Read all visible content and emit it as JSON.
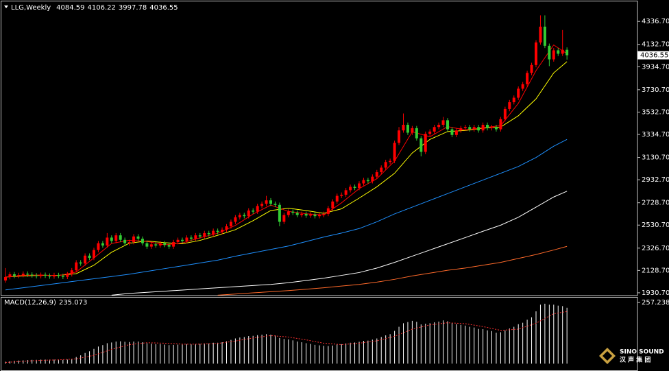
{
  "chart_data": [
    {
      "type": "candlestick",
      "title": "LLG,Weekly",
      "open": [
        2040,
        2070,
        2095,
        2080,
        2088,
        2100,
        2092,
        2085,
        2078,
        2090,
        2082,
        2075,
        2088,
        2080,
        2072,
        2095,
        2130,
        2200,
        2190,
        2260,
        2240,
        2310,
        2370,
        2350,
        2420,
        2390,
        2440,
        2400,
        2370,
        2380,
        2430,
        2410,
        2370,
        2340,
        2360,
        2350,
        2370,
        2355,
        2340,
        2380,
        2400,
        2390,
        2420,
        2410,
        2440,
        2430,
        2460,
        2450,
        2480,
        2470,
        2490,
        2520,
        2560,
        2600,
        2620,
        2610,
        2660,
        2650,
        2700,
        2720,
        2750,
        2720,
        2710,
        2560,
        2620,
        2650,
        2640,
        2620,
        2630,
        2615,
        2625,
        2610,
        2620,
        2630,
        2680,
        2740,
        2790,
        2800,
        2840,
        2870,
        2860,
        2900,
        2930,
        2920,
        2960,
        3000,
        3040,
        3090,
        3100,
        3260,
        3370,
        3420,
        3350,
        3390,
        3300,
        3180,
        3340,
        3360,
        3400,
        3420,
        3460,
        3380,
        3330,
        3370,
        3390,
        3400,
        3380,
        3400,
        3370,
        3420,
        3390,
        3400,
        3380,
        3470,
        3560,
        3620,
        3660,
        3740,
        3780,
        3880,
        3950,
        4150,
        4290,
        4120,
        4000,
        4080,
        4050,
        4084.59
      ],
      "high": [
        2150,
        2115,
        2115,
        2108,
        2120,
        2120,
        2112,
        2105,
        2110,
        2110,
        2102,
        2108,
        2108,
        2100,
        2115,
        2150,
        2220,
        2220,
        2280,
        2280,
        2330,
        2390,
        2390,
        2460,
        2440,
        2460,
        2460,
        2420,
        2400,
        2450,
        2450,
        2430,
        2390,
        2380,
        2380,
        2390,
        2390,
        2375,
        2400,
        2420,
        2420,
        2440,
        2440,
        2460,
        2460,
        2480,
        2480,
        2500,
        2500,
        2510,
        2540,
        2580,
        2620,
        2640,
        2640,
        2680,
        2680,
        2720,
        2740,
        2790,
        2770,
        2740,
        2730,
        2640,
        2670,
        2670,
        2660,
        2650,
        2650,
        2645,
        2645,
        2640,
        2650,
        2700,
        2760,
        2810,
        2820,
        2860,
        2890,
        2890,
        2920,
        2950,
        2950,
        2980,
        3020,
        3060,
        3110,
        3120,
        3280,
        3400,
        3520,
        3440,
        3410,
        3410,
        3320,
        3360,
        3380,
        3420,
        3440,
        3490,
        3480,
        3400,
        3390,
        3410,
        3420,
        3420,
        3420,
        3420,
        3440,
        3440,
        3420,
        3420,
        3490,
        3580,
        3640,
        3680,
        3760,
        3800,
        3900,
        3970,
        4170,
        4390,
        4390,
        4140,
        4100,
        4100,
        4260,
        4106.22
      ],
      "low": [
        2020,
        2050,
        2060,
        2060,
        2068,
        2072,
        2065,
        2058,
        2058,
        2062,
        2055,
        2055,
        2060,
        2052,
        2052,
        2075,
        2110,
        2170,
        2170,
        2220,
        2220,
        2290,
        2330,
        2330,
        2370,
        2370,
        2380,
        2350,
        2350,
        2360,
        2390,
        2350,
        2320,
        2320,
        2330,
        2330,
        2335,
        2320,
        2320,
        2360,
        2370,
        2370,
        2390,
        2390,
        2410,
        2410,
        2430,
        2430,
        2450,
        2450,
        2470,
        2500,
        2540,
        2580,
        2590,
        2590,
        2630,
        2630,
        2680,
        2700,
        2700,
        2690,
        2520,
        2540,
        2600,
        2620,
        2600,
        2600,
        2595,
        2595,
        2590,
        2590,
        2600,
        2610,
        2660,
        2720,
        2770,
        2780,
        2820,
        2840,
        2840,
        2880,
        2900,
        2900,
        2940,
        2980,
        3020,
        3070,
        3080,
        3240,
        3350,
        3330,
        3330,
        3280,
        3140,
        3160,
        3320,
        3340,
        3380,
        3400,
        3360,
        3310,
        3310,
        3350,
        3370,
        3360,
        3360,
        3350,
        3350,
        3370,
        3370,
        3360,
        3360,
        3450,
        3540,
        3600,
        3640,
        3720,
        3760,
        3860,
        3930,
        4130,
        4100,
        3940,
        3980,
        4030,
        4030,
        3997.78
      ],
      "close": [
        2070,
        2095,
        2080,
        2088,
        2100,
        2092,
        2085,
        2078,
        2090,
        2082,
        2075,
        2088,
        2080,
        2072,
        2095,
        2130,
        2200,
        2190,
        2260,
        2240,
        2310,
        2370,
        2350,
        2420,
        2390,
        2440,
        2400,
        2370,
        2380,
        2430,
        2410,
        2370,
        2340,
        2360,
        2350,
        2370,
        2355,
        2340,
        2380,
        2400,
        2390,
        2420,
        2410,
        2440,
        2430,
        2460,
        2450,
        2480,
        2470,
        2490,
        2520,
        2560,
        2600,
        2620,
        2610,
        2660,
        2650,
        2700,
        2720,
        2750,
        2720,
        2710,
        2560,
        2620,
        2650,
        2640,
        2620,
        2630,
        2615,
        2625,
        2610,
        2620,
        2630,
        2680,
        2740,
        2790,
        2800,
        2840,
        2870,
        2860,
        2900,
        2930,
        2920,
        2960,
        3000,
        3040,
        3090,
        3100,
        3260,
        3370,
        3420,
        3350,
        3390,
        3300,
        3180,
        3340,
        3360,
        3400,
        3420,
        3460,
        3380,
        3330,
        3370,
        3390,
        3400,
        3380,
        3400,
        3370,
        3420,
        3390,
        3400,
        3380,
        3470,
        3560,
        3620,
        3660,
        3740,
        3780,
        3880,
        3950,
        4150,
        4290,
        4120,
        4000,
        4080,
        4050,
        4084,
        4036.55
      ],
      "up_color": "#ff0000",
      "down_color": "#33cc33",
      "ylim": [
        1906,
        4508
      ],
      "yticks": [
        {
          "value": 1930.7,
          "label": "1930.70"
        },
        {
          "value": 2128.7,
          "label": "2128.70"
        },
        {
          "value": 2326.7,
          "label": "2326.70"
        },
        {
          "value": 2530.7,
          "label": "2530.70"
        },
        {
          "value": 2728.7,
          "label": "2728.70"
        },
        {
          "value": 2932.7,
          "label": "2932.70"
        },
        {
          "value": 3130.7,
          "label": "3130.70"
        },
        {
          "value": 3334.7,
          "label": "3334.70"
        },
        {
          "value": 3532.7,
          "label": "3532.70"
        },
        {
          "value": 3730.7,
          "label": "3730.70"
        },
        {
          "value": 3934.7,
          "label": "3934.70"
        },
        {
          "value": 4132.7,
          "label": "4132.70"
        },
        {
          "value": 4336.7,
          "label": "4336.70"
        }
      ],
      "grid": false,
      "overlays": [
        {
          "color": "#1e90ff",
          "x": [
            0,
            4,
            8,
            12,
            16,
            20,
            24,
            28,
            32,
            36,
            40,
            44,
            48,
            52,
            56,
            60,
            64,
            68,
            72,
            76,
            80,
            84,
            88,
            92,
            96,
            100,
            104,
            108,
            112,
            116,
            120,
            124,
            127
          ],
          "values": [
            1956,
            1975,
            1995,
            2015,
            2035,
            2055,
            2075,
            2095,
            2120,
            2145,
            2170,
            2195,
            2220,
            2255,
            2285,
            2315,
            2345,
            2385,
            2425,
            2460,
            2500,
            2560,
            2630,
            2690,
            2750,
            2810,
            2870,
            2930,
            2990,
            3050,
            3130,
            3230,
            3290
          ]
        },
        {
          "color": "#ffffff",
          "x": [
            24,
            28,
            32,
            36,
            40,
            44,
            48,
            52,
            56,
            60,
            64,
            68,
            72,
            76,
            80,
            84,
            88,
            92,
            96,
            100,
            104,
            108,
            112,
            116,
            120,
            124,
            127
          ],
          "values": [
            1910,
            1925,
            1935,
            1945,
            1955,
            1965,
            1975,
            1985,
            1995,
            2005,
            2020,
            2040,
            2060,
            2085,
            2110,
            2150,
            2200,
            2255,
            2310,
            2365,
            2420,
            2476,
            2530,
            2600,
            2690,
            2780,
            2831
          ]
        },
        {
          "color": "#ff6a2a",
          "x": [
            48,
            52,
            56,
            60,
            64,
            68,
            72,
            76,
            80,
            84,
            88,
            92,
            96,
            100,
            104,
            108,
            112,
            116,
            120,
            124,
            127
          ],
          "values": [
            1910,
            1920,
            1930,
            1940,
            1950,
            1962,
            1975,
            1990,
            2005,
            2025,
            2050,
            2080,
            2105,
            2130,
            2150,
            2175,
            2200,
            2235,
            2270,
            2310,
            2342
          ]
        },
        {
          "color": "#ffff00",
          "x": [
            0,
            4,
            8,
            12,
            16,
            20,
            24,
            28,
            32,
            36,
            40,
            44,
            48,
            52,
            56,
            60,
            64,
            68,
            72,
            76,
            80,
            84,
            88,
            92,
            96,
            100,
            104,
            108,
            112,
            116,
            120,
            124,
            127
          ],
          "values": [
            2070,
            2080,
            2085,
            2085,
            2100,
            2175,
            2290,
            2370,
            2390,
            2375,
            2365,
            2395,
            2440,
            2490,
            2570,
            2660,
            2680,
            2660,
            2635,
            2675,
            2770,
            2870,
            2990,
            3170,
            3290,
            3360,
            3370,
            3390,
            3400,
            3500,
            3650,
            3880,
            3980
          ]
        },
        {
          "color": "#ff0000",
          "x": [
            0,
            4,
            8,
            12,
            16,
            20,
            24,
            28,
            32,
            36,
            40,
            44,
            48,
            52,
            56,
            60,
            64,
            68,
            72,
            76,
            80,
            84,
            88,
            92,
            96,
            100,
            104,
            108,
            112,
            116,
            120,
            124,
            127
          ],
          "values": [
            2070,
            2085,
            2088,
            2082,
            2115,
            2240,
            2368,
            2396,
            2386,
            2355,
            2373,
            2418,
            2458,
            2528,
            2628,
            2708,
            2652,
            2631,
            2620,
            2728,
            2854,
            2942,
            3098,
            3358,
            3314,
            3404,
            3374,
            3394,
            3412,
            3610,
            3900,
            4128,
            4050
          ]
        }
      ]
    },
    {
      "type": "macd",
      "title": "MACD(12,26,9)",
      "histogram": {
        "color": "#ffffff",
        "values": [
          8,
          10,
          12,
          13,
          14,
          15,
          16,
          16,
          17,
          17,
          17,
          17,
          17,
          16,
          17,
          20,
          28,
          35,
          45,
          52,
          62,
          72,
          78,
          86,
          89,
          93,
          94,
          92,
          91,
          93,
          93,
          90,
          86,
          84,
          82,
          82,
          80,
          78,
          79,
          80,
          80,
          82,
          81,
          83,
          83,
          85,
          85,
          88,
          88,
          90,
          94,
          100,
          106,
          110,
          112,
          116,
          117,
          120,
          122,
          124,
          122,
          119,
          108,
          104,
          102,
          98,
          93,
          90,
          86,
          83,
          79,
          77,
          75,
          74,
          76,
          80,
          82,
          85,
          88,
          89,
          92,
          96,
          97,
          101,
          106,
          112,
          119,
          124,
          138,
          155,
          170,
          175,
          180,
          176,
          165,
          168,
          170,
          174,
          177,
          182,
          178,
          170,
          166,
          163,
          160,
          155,
          152,
          146,
          145,
          140,
          137,
          130,
          132,
          140,
          148,
          155,
          166,
          172,
          185,
          195,
          220,
          248,
          252,
          248,
          248,
          244,
          242,
          235.073
        ]
      },
      "signal": {
        "color": "#ff3030",
        "x": [
          0,
          4,
          8,
          12,
          16,
          20,
          24,
          28,
          32,
          36,
          40,
          44,
          48,
          52,
          56,
          60,
          64,
          68,
          72,
          76,
          80,
          84,
          88,
          92,
          96,
          100,
          104,
          108,
          112,
          116,
          120,
          124,
          127
        ],
        "values": [
          5,
          10,
          14,
          16,
          20,
          35,
          60,
          80,
          88,
          86,
          82,
          82,
          85,
          95,
          108,
          118,
          112,
          100,
          86,
          80,
          86,
          96,
          115,
          145,
          163,
          172,
          168,
          156,
          140,
          145,
          170,
          210,
          219.038
        ]
      },
      "ylim": [
        -28,
        269
      ],
      "yticks": [
        257.238
      ]
    }
  ],
  "logo": {
    "name": "SINO SOUND",
    "subtitle": "汉 声 集 团"
  }
}
